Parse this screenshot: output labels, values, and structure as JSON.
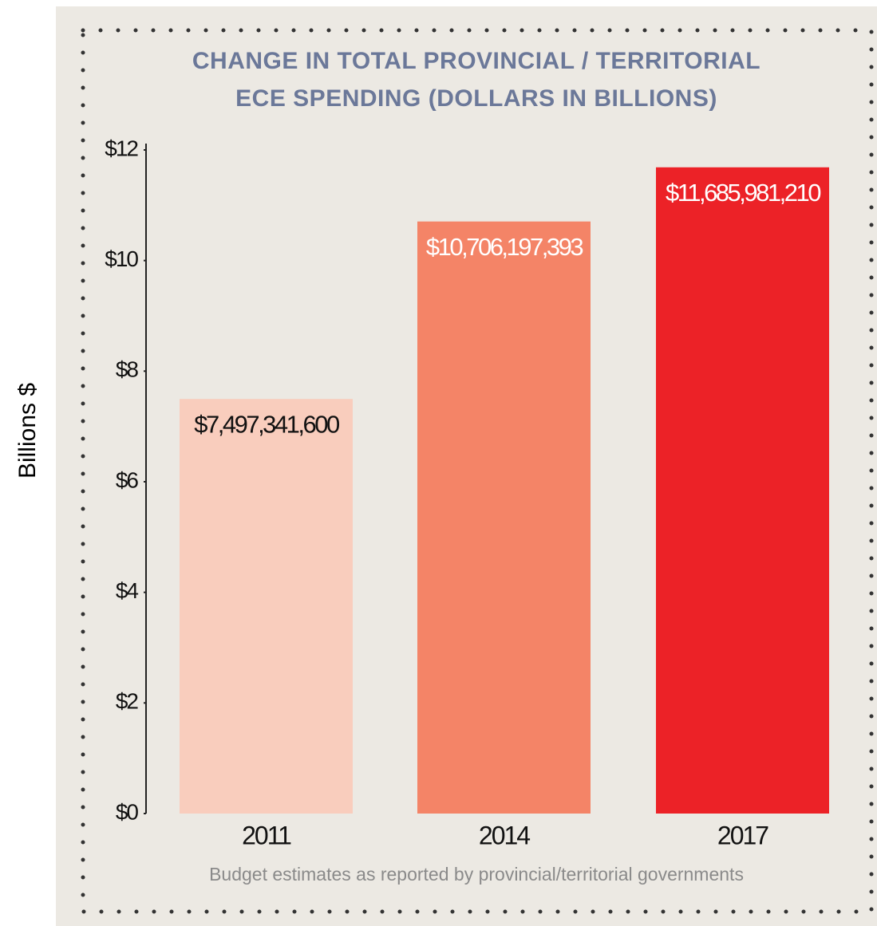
{
  "chart_data": {
    "type": "bar",
    "title": [
      "CHANGE IN TOTAL PROVINCIAL / TERRITORIAL",
      "ECE SPENDING (DOLLARS IN BILLIONS)"
    ],
    "y_label": "Billions $",
    "note": "Budget estimates as reported by provincial/territorial governments",
    "categories": [
      "2011",
      "2014",
      "2017"
    ],
    "values": [
      7.4973416,
      10.706197393,
      11.68598121
    ],
    "value_labels": [
      "$7,497,341,600",
      "$10,706,197,393",
      "$11,685,981,210"
    ],
    "colors": [
      "#f9cdbd",
      "#f48467",
      "#ec2227"
    ],
    "value_label_colors": [
      "#111111",
      "#ffffff",
      "#ffffff"
    ],
    "ylim": [
      0,
      12
    ],
    "yticks": [
      {
        "value": 0,
        "label": "$0"
      },
      {
        "value": 2,
        "label": "$2"
      },
      {
        "value": 4,
        "label": "$4"
      },
      {
        "value": 6,
        "label": "$6"
      },
      {
        "value": 8,
        "label": "$8"
      },
      {
        "value": 10,
        "label": "$10"
      },
      {
        "value": 12,
        "label": "$12"
      }
    ],
    "grid": false
  }
}
